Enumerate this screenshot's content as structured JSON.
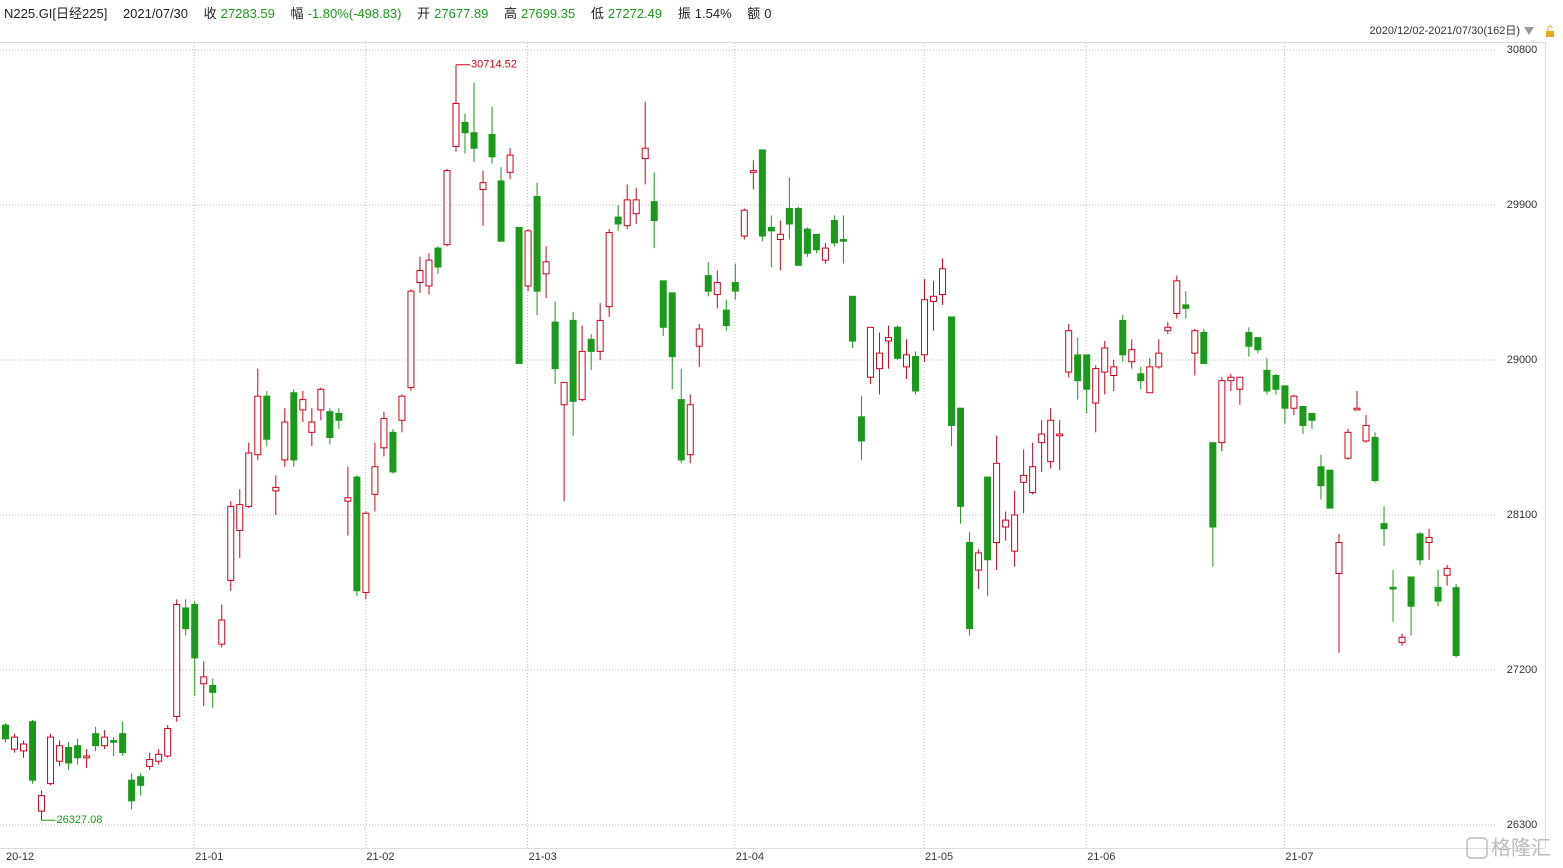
{
  "header": {
    "symbol": "N225.GI[日经225]",
    "date": "2021/07/30",
    "close_label": "收",
    "close": "27283.59",
    "change_label": "幅",
    "change": "-1.80%(-498.83)",
    "open_label": "开",
    "open": "27677.89",
    "high_label": "高",
    "high": "27699.35",
    "low_label": "低",
    "low": "27272.49",
    "amp_label": "振",
    "amp": "1.54%",
    "amount_label": "额",
    "amount": "0"
  },
  "range_label": "2020/12/02-2021/07/30(162日)",
  "watermark": "格隆汇",
  "chart_data": {
    "type": "candlestick",
    "up_color": "#d0021b",
    "down_color": "#1a9a1a",
    "grid": true,
    "ylim": [
      26166,
      30841
    ],
    "yticks": [
      26300,
      27200,
      28100,
      29000,
      29900,
      30800
    ],
    "categories": [
      "20-12",
      null,
      null,
      null,
      null,
      null,
      null,
      null,
      null,
      null,
      null,
      null,
      null,
      null,
      null,
      null,
      null,
      null,
      null,
      null,
      null,
      "21-01",
      null,
      null,
      null,
      null,
      null,
      null,
      null,
      null,
      null,
      null,
      null,
      null,
      null,
      null,
      null,
      null,
      null,
      null,
      "21-02",
      null,
      null,
      null,
      null,
      null,
      null,
      null,
      null,
      null,
      null,
      null,
      null,
      null,
      null,
      null,
      null,
      null,
      "21-03",
      null,
      null,
      null,
      null,
      null,
      null,
      null,
      null,
      null,
      null,
      null,
      null,
      null,
      null,
      null,
      null,
      null,
      null,
      null,
      null,
      null,
      null,
      "21-04",
      null,
      null,
      null,
      null,
      null,
      null,
      null,
      null,
      null,
      null,
      null,
      null,
      null,
      null,
      null,
      null,
      null,
      null,
      null,
      null,
      "21-05",
      null,
      null,
      null,
      null,
      null,
      null,
      null,
      null,
      null,
      null,
      null,
      null,
      null,
      null,
      null,
      null,
      null,
      "21-06",
      null,
      null,
      null,
      null,
      null,
      null,
      null,
      null,
      null,
      null,
      null,
      null,
      null,
      null,
      null,
      null,
      null,
      null,
      null,
      null,
      null,
      "21-07",
      null,
      null,
      null,
      null,
      null,
      null,
      null,
      null,
      null,
      null,
      null,
      null,
      null,
      null,
      null,
      null,
      null,
      null,
      null
    ],
    "series": [
      {
        "open": [
          26880,
          26740,
          26730,
          26900,
          26380,
          26540,
          26670,
          26750,
          26760,
          26690,
          26830,
          26760,
          26790,
          26830,
          26560,
          26580,
          26640,
          26670,
          26700,
          26930,
          27560,
          27580,
          27120,
          27110,
          27350,
          27720,
          28010,
          28150,
          28450,
          28790,
          28240,
          28420,
          28810,
          28710,
          28580,
          28710,
          28700,
          28690,
          28180,
          28320,
          27650,
          28220,
          28490,
          28580,
          28650,
          28840,
          29450,
          29430,
          29650,
          29670,
          30240,
          30380,
          30320,
          29990,
          30310,
          30040,
          30090,
          29770,
          29430,
          29950,
          29500,
          29220,
          28740,
          29230,
          28770,
          29120,
          29050,
          29310,
          29830,
          29780,
          29850,
          30170,
          29920,
          29460,
          29390,
          28770,
          28450,
          29080,
          29490,
          29380,
          29290,
          29450,
          29720,
          30090,
          30220,
          29770,
          29700,
          29880,
          29880,
          29760,
          29730,
          29580,
          29810,
          29700,
          29370,
          28670,
          28900,
          28950,
          29110,
          29190,
          28960,
          29020,
          29030,
          29340,
          29380,
          29250,
          28720,
          27940,
          27780,
          28320,
          27940,
          28030,
          27890,
          28290,
          28230,
          28520,
          28410,
          28560,
          28930,
          29030,
          29030,
          28750,
          28930,
          28910,
          29230,
          28990,
          28920,
          28810,
          28960,
          29170,
          29270,
          29320,
          29040,
          29160,
          28520,
          28520,
          28880,
          28830,
          29160,
          29130,
          28940,
          28910,
          28850,
          28720,
          28730,
          28690,
          28380,
          28360,
          27760,
          28430,
          28710,
          28530,
          28550,
          28050,
          27680,
          27360,
          27740,
          27990,
          27940,
          27680,
          27750,
          27677.89
        ],
        "close": [
          26800,
          26810,
          26770,
          26560,
          26470,
          26810,
          26760,
          26660,
          26690,
          26700,
          26760,
          26810,
          26780,
          26720,
          26440,
          26530,
          26680,
          26710,
          26860,
          27580,
          27440,
          27270,
          27160,
          27070,
          27490,
          28150,
          28160,
          28460,
          28790,
          28540,
          28260,
          28640,
          28420,
          28770,
          28640,
          28830,
          28550,
          28650,
          28200,
          27660,
          28110,
          28380,
          28660,
          28350,
          28790,
          29400,
          29520,
          29580,
          29540,
          30100,
          30490,
          30320,
          30230,
          30030,
          30180,
          29690,
          30190,
          28980,
          29750,
          29400,
          29570,
          28950,
          28870,
          28760,
          29050,
          29050,
          29230,
          29740,
          29790,
          29930,
          29930,
          30230,
          29810,
          29190,
          29020,
          28420,
          28740,
          29180,
          29400,
          29450,
          29200,
          29400,
          29870,
          30100,
          29720,
          29750,
          29730,
          29790,
          29550,
          29620,
          29640,
          29650,
          29680,
          29690,
          29110,
          28530,
          29190,
          29040,
          29130,
          29010,
          29030,
          28820,
          29350,
          29370,
          29530,
          28620,
          28150,
          27440,
          27880,
          27840,
          28400,
          28070,
          28100,
          28330,
          28380,
          28570,
          28650,
          28570,
          29170,
          28880,
          28830,
          28950,
          29070,
          28960,
          29030,
          29060,
          28880,
          28960,
          29040,
          29190,
          29460,
          29300,
          29170,
          28980,
          28030,
          28880,
          28900,
          28900,
          29080,
          29060,
          28820,
          28830,
          28720,
          28790,
          28620,
          28650,
          28270,
          28140,
          27940,
          28580,
          28720,
          28620,
          28300,
          28020,
          27670,
          27390,
          27570,
          27840,
          27970,
          27600,
          27790,
          27283.59
        ],
        "high": [
          26890,
          26830,
          26790,
          26910,
          26500,
          26830,
          26790,
          26780,
          26800,
          26740,
          26870,
          26850,
          26810,
          26900,
          26600,
          26600,
          26720,
          26740,
          26880,
          27610,
          27610,
          27600,
          27250,
          27150,
          27580,
          28180,
          28250,
          28520,
          28950,
          28820,
          28330,
          28720,
          28830,
          28820,
          28720,
          28840,
          28720,
          28720,
          28380,
          28330,
          28120,
          28520,
          28700,
          28600,
          28800,
          29410,
          29600,
          29620,
          29660,
          30110,
          30714.52,
          30430,
          30610,
          30100,
          30470,
          30120,
          30230,
          29770,
          29760,
          30030,
          29660,
          29340,
          28870,
          29280,
          29200,
          29150,
          29330,
          29760,
          29900,
          30020,
          30000,
          30500,
          30090,
          29460,
          29390,
          28950,
          28800,
          29210,
          29570,
          29520,
          29350,
          29560,
          29880,
          30160,
          30220,
          29840,
          29810,
          30060,
          29890,
          29770,
          29730,
          29680,
          29840,
          29840,
          29370,
          28790,
          29190,
          29160,
          29200,
          29200,
          29120,
          29050,
          29470,
          29460,
          29590,
          29250,
          28720,
          28000,
          27900,
          28320,
          28560,
          28120,
          28240,
          28480,
          28520,
          28650,
          28720,
          28650,
          29210,
          29130,
          29030,
          28970,
          29110,
          29000,
          29260,
          29120,
          28960,
          29010,
          29120,
          29220,
          29490,
          29400,
          29180,
          29180,
          28520,
          28900,
          28920,
          28900,
          29190,
          29130,
          29010,
          28920,
          28850,
          28800,
          28730,
          28690,
          28450,
          28360,
          27990,
          28600,
          28820,
          28680,
          28580,
          28150,
          27780,
          27410,
          27740,
          28000,
          28020,
          27780,
          27810,
          27699.35
        ],
        "low": [
          26780,
          26720,
          26690,
          26540,
          26327.08,
          26530,
          26640,
          26620,
          26650,
          26630,
          26730,
          26740,
          26700,
          26700,
          26390,
          26470,
          26620,
          26650,
          26690,
          26900,
          27400,
          27050,
          26990,
          26980,
          27330,
          27660,
          27850,
          28140,
          28420,
          28500,
          28100,
          28380,
          28380,
          28640,
          28500,
          28650,
          28510,
          28600,
          27980,
          27630,
          27610,
          28120,
          28440,
          28340,
          28580,
          28820,
          29390,
          29380,
          29500,
          29660,
          30210,
          30200,
          30150,
          29780,
          30140,
          29690,
          30050,
          28980,
          29400,
          29260,
          29360,
          28860,
          28180,
          28560,
          28760,
          28940,
          29000,
          29250,
          29750,
          29760,
          29790,
          30020,
          29650,
          29140,
          28830,
          28400,
          28400,
          28960,
          29370,
          29300,
          29170,
          29350,
          29700,
          29990,
          29690,
          29540,
          29520,
          29700,
          29550,
          29600,
          29620,
          29560,
          29660,
          29560,
          29070,
          28420,
          28860,
          28800,
          28950,
          29000,
          28890,
          28800,
          28990,
          29170,
          29320,
          28500,
          28050,
          27400,
          27670,
          27630,
          27780,
          27950,
          27800,
          28110,
          28220,
          28350,
          28370,
          28360,
          28900,
          28770,
          28690,
          28580,
          28800,
          28820,
          28990,
          28950,
          28830,
          28810,
          28950,
          29150,
          29240,
          29240,
          28910,
          28980,
          27800,
          28470,
          28820,
          28740,
          29020,
          29040,
          28800,
          28800,
          28630,
          28680,
          28570,
          28600,
          28190,
          28140,
          27300,
          28420,
          28710,
          28520,
          28290,
          27920,
          27480,
          27340,
          27400,
          27810,
          27840,
          27570,
          27690,
          27272.49
        ]
      }
    ]
  }
}
